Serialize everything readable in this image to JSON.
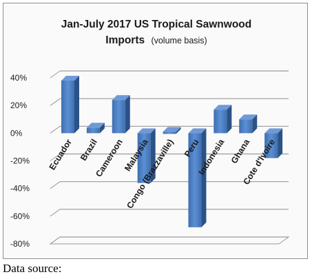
{
  "chart_data": {
    "type": "bar",
    "title": "Jan-July 2017 US Tropical Sawnwood",
    "subtitle_main": "Imports",
    "subtitle_note": "(volume basis)",
    "categories": [
      "Ecuador",
      "Brazil",
      "Cameroon",
      "Malaysia",
      "Congo (Brazzaville)",
      "Peru",
      "Indonesia",
      "Ghana",
      "Cote d'Ivoire"
    ],
    "values": [
      38,
      4,
      24,
      -36,
      0,
      -68,
      17,
      10,
      -18
    ],
    "unit": "%",
    "ylim": [
      -80,
      40
    ],
    "yticks": [
      "40%",
      "20%",
      "0%",
      "-20%",
      "-40%",
      "-60%",
      "-80%"
    ],
    "grid": true,
    "bar_color": "#4f81bd"
  },
  "footer": {
    "source_label": "Data source:"
  }
}
